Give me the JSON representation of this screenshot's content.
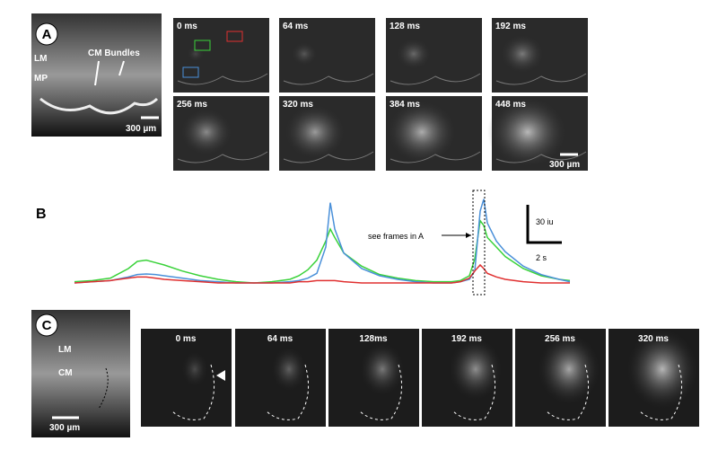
{
  "panel_a": {
    "label": "A",
    "image_labels": [
      "LM",
      "MP",
      "CM Bundles"
    ],
    "scale": "300 µm",
    "frames": [
      "0 ms",
      "64 ms",
      "128 ms",
      "192 ms",
      "256 ms",
      "320 ms",
      "384 ms",
      "448 ms"
    ],
    "frame_scale": "300 µm"
  },
  "panel_b": {
    "label": "B",
    "annotation": "see frames in A",
    "scale_y": "30 iu",
    "scale_x": "2 s",
    "traces": {
      "x": [
        0,
        1,
        2,
        3,
        3.5,
        4,
        4.5,
        5,
        6,
        7,
        8,
        9,
        10,
        11,
        12,
        12.5,
        13,
        13.5,
        14,
        14.25,
        14.5,
        15,
        16,
        17,
        18,
        19,
        20,
        21,
        21.5,
        22,
        22.3,
        22.6,
        22.8,
        23,
        23.5,
        24,
        25,
        26,
        27,
        27.6
      ],
      "series": [
        {
          "color": "#3ad23a",
          "values": [
            1,
            2,
            4,
            12,
            18,
            19,
            17,
            15,
            10,
            6,
            3,
            1,
            0,
            1,
            3,
            6,
            11,
            19,
            35,
            45,
            38,
            25,
            14,
            7,
            4,
            2,
            1,
            1,
            2,
            6,
            20,
            52,
            48,
            38,
            30,
            22,
            12,
            6,
            3,
            2
          ]
        },
        {
          "color": "#4a90d9",
          "values": [
            0,
            1,
            2,
            5,
            7,
            7.5,
            7,
            6,
            4,
            2,
            1,
            0,
            0,
            0,
            1,
            2,
            4,
            8,
            30,
            67,
            45,
            25,
            12,
            6,
            3,
            1,
            0,
            0,
            1,
            3,
            10,
            60,
            70,
            50,
            35,
            26,
            14,
            7,
            3,
            1
          ]
        },
        {
          "color": "#e03030",
          "values": [
            0,
            1,
            2,
            4,
            5,
            5,
            4,
            3,
            2,
            1,
            0,
            0,
            0,
            0,
            0,
            1,
            1,
            2,
            2,
            2,
            2,
            1,
            0,
            0,
            0,
            0,
            0,
            0,
            1,
            4,
            10,
            15,
            12,
            8,
            5,
            3,
            1,
            0,
            0,
            0
          ]
        }
      ]
    }
  },
  "panel_c": {
    "label": "C",
    "image_labels": [
      "LM",
      "CM"
    ],
    "scale": "300 µm",
    "frames": [
      "0 ms",
      "64 ms",
      "128ms",
      "192 ms",
      "256 ms",
      "320 ms"
    ]
  }
}
